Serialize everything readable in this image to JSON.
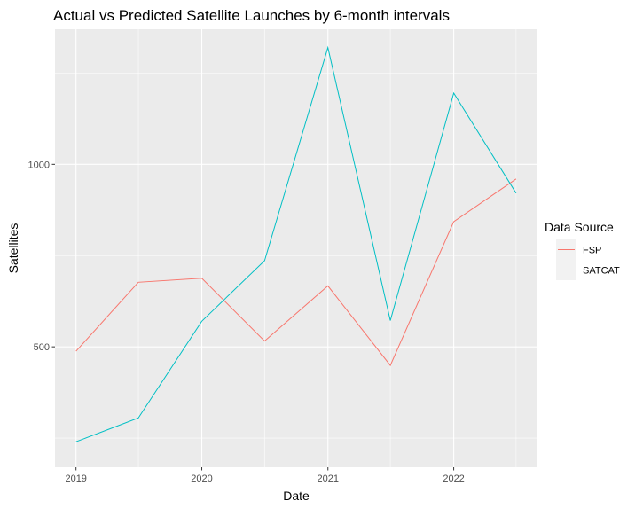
{
  "chart_data": {
    "type": "line",
    "title": "Actual vs Predicted Satellite Launches by 6-month intervals",
    "xlabel": "Date",
    "ylabel": "Satellites",
    "x": [
      "2019-01-01",
      "2019-07-01",
      "2020-01-01",
      "2020-07-01",
      "2021-01-01",
      "2021-07-01",
      "2022-01-01",
      "2022-07-01"
    ],
    "x_ticks": [
      "2019",
      "2020",
      "2021",
      "2022"
    ],
    "xlim": [
      "2018-11-01",
      "2022-09-01"
    ],
    "y_ticks": [
      500,
      1000
    ],
    "ylim": [
      170,
      1370
    ],
    "grid": true,
    "legend": {
      "title": "Data Source",
      "placement": "right"
    },
    "series": [
      {
        "name": "FSP",
        "color": "#F8766D",
        "values": [
          488,
          677,
          688,
          516,
          667,
          449,
          843,
          960
        ]
      },
      {
        "name": "SATCAT",
        "color": "#00BFC4",
        "values": [
          240,
          305,
          570,
          736,
          1320,
          572,
          1195,
          921
        ]
      }
    ],
    "colors": {
      "panel_background": "#EBEBEB",
      "grid_major": "#FFFFFF",
      "tick_label": "#4D4D4D"
    }
  }
}
